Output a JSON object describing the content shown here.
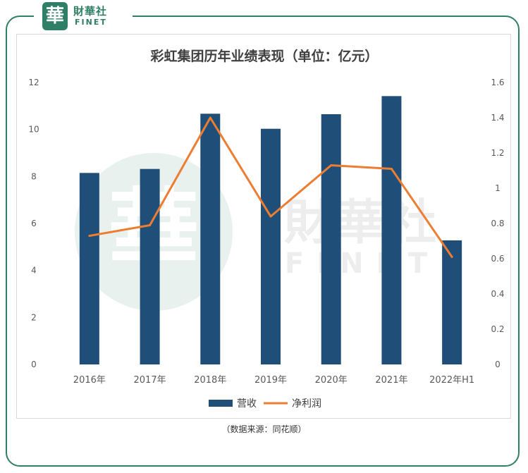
{
  "brand": {
    "logo_char": "華",
    "name_cn": "財華社",
    "name_en": "FINET",
    "accent_color": "#2f7f66"
  },
  "source_note": "（数据来源：同花顺）",
  "chart_data": {
    "type": "bar",
    "title": "彩虹集团历年业绩表现（单位：亿元）",
    "categories": [
      "2016年",
      "2017年",
      "2018年",
      "2019年",
      "2020年",
      "2021年",
      "2022年H1"
    ],
    "series": [
      {
        "name": "营收",
        "type": "bar",
        "axis": "left",
        "color": "#1f4e79",
        "values": [
          8.15,
          8.32,
          10.67,
          10.03,
          10.65,
          11.42,
          5.28
        ]
      },
      {
        "name": "净利润",
        "type": "line",
        "axis": "right",
        "color": "#ed7d31",
        "values": [
          0.73,
          0.79,
          1.4,
          0.84,
          1.13,
          1.11,
          0.61
        ]
      }
    ],
    "y_left": {
      "min": 0,
      "max": 12,
      "ticks": [
        0,
        2,
        4,
        6,
        8,
        10,
        12
      ]
    },
    "y_right": {
      "min": 0,
      "max": 1.6,
      "ticks": [
        "0",
        "0.2",
        "0.4",
        "0.6",
        "0.8",
        "1",
        "1.2",
        "1.4",
        "1.6"
      ]
    },
    "legend_position": "bottom",
    "gridlines": false
  }
}
